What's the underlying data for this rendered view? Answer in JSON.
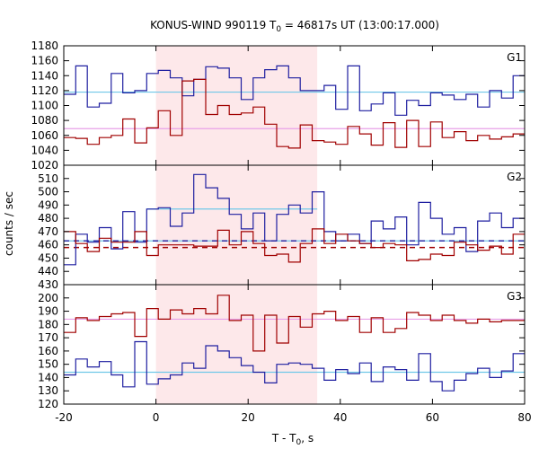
{
  "chart_data": {
    "type": "line",
    "title": "KONUS-WIND 990119 T",
    "title_sub": "0",
    "title_rest": " = 46817s UT (13:00:17.000)",
    "xlabel": "T - T",
    "xlabel_sub": "0",
    "xlabel_rest": ", s",
    "ylabel": "counts / sec",
    "xlim": [
      -20,
      80
    ],
    "x_ticks": [
      -20,
      0,
      20,
      40,
      60,
      80
    ],
    "highlight_interval": [
      0,
      35
    ],
    "colors": {
      "blue": "#1f1fa0",
      "red": "#a00000",
      "cyan": "#70c8e8",
      "pink": "#e8a0e8",
      "shade": "#fde8ea"
    },
    "bin_edges": [
      -20,
      -17.4,
      -14.9,
      -12.3,
      -9.7,
      -7.2,
      -4.6,
      -2.0,
      0.5,
      3.1,
      5.7,
      8.2,
      10.8,
      13.4,
      15.9,
      18.5,
      21.1,
      23.6,
      26.2,
      28.8,
      31.3,
      33.9,
      36.5,
      39.0,
      41.6,
      44.2,
      46.7,
      49.3,
      51.9,
      54.4,
      57.0,
      59.6,
      62.1,
      64.7,
      67.3,
      69.8,
      72.4,
      75.0,
      77.5,
      80
    ],
    "panels": [
      {
        "label": "G1",
        "ylim": [
          1020,
          1180
        ],
        "yticks": [
          1020,
          1040,
          1060,
          1080,
          1100,
          1120,
          1140,
          1160,
          1180
        ],
        "series": [
          {
            "color": "blue",
            "values": [
              1115,
              1153,
              1098,
              1103,
              1143,
              1117,
              1120,
              1143,
              1147,
              1137,
              1113,
              1135,
              1152,
              1150,
              1137,
              1108,
              1137,
              1148,
              1153,
              1137,
              1120,
              1120,
              1127,
              1095,
              1153,
              1093,
              1102,
              1117,
              1087,
              1107,
              1100,
              1117,
              1114,
              1108,
              1115,
              1098,
              1120,
              1110,
              1140
            ]
          },
          {
            "color": "red",
            "values": [
              1057,
              1056,
              1048,
              1057,
              1060,
              1082,
              1050,
              1070,
              1093,
              1060,
              1133,
              1135,
              1088,
              1100,
              1088,
              1090,
              1098,
              1075,
              1045,
              1043,
              1074,
              1053,
              1051,
              1048,
              1072,
              1062,
              1047,
              1077,
              1044,
              1080,
              1045,
              1078,
              1057,
              1065,
              1053,
              1060,
              1055,
              1058,
              1062
            ]
          }
        ],
        "reference_lines": [
          {
            "color": "cyan",
            "y": 1118,
            "x": [
              -20,
              80
            ],
            "dashed": false
          },
          {
            "color": "pink",
            "y": 1069,
            "x": [
              -20,
              80
            ],
            "dashed": false
          }
        ]
      },
      {
        "label": "G2",
        "ylim": [
          430,
          520
        ],
        "yticks": [
          430,
          440,
          450,
          460,
          470,
          480,
          490,
          500,
          510
        ],
        "series": [
          {
            "color": "blue",
            "values": [
              445,
              468,
              462,
              473,
              457,
              485,
              462,
              487,
              488,
              474,
              484,
              513,
              503,
              495,
              483,
              472,
              484,
              463,
              483,
              490,
              484,
              500,
              470,
              463,
              468,
              461,
              478,
              472,
              481,
              460,
              492,
              480,
              468,
              473,
              455,
              478,
              484,
              473,
              480
            ]
          },
          {
            "color": "red",
            "values": [
              470,
              461,
              455,
              465,
              462,
              462,
              470,
              452,
              460,
              460,
              460,
              459,
              459,
              471,
              460,
              470,
              461,
              452,
              453,
              447,
              461,
              472,
              461,
              468,
              463,
              461,
              458,
              461,
              460,
              448,
              449,
              453,
              452,
              462,
              460,
              456,
              459,
              453,
              468
            ]
          }
        ],
        "reference_lines": [
          {
            "color": "cyan",
            "y": 487,
            "x": [
              -2.0,
              35.0
            ],
            "dashed": false
          },
          {
            "color": "cyan",
            "y": 463,
            "x": [
              -20,
              80
            ],
            "dashed": false
          },
          {
            "color": "blue",
            "y": 463,
            "x": [
              -20,
              80
            ],
            "dashed": true
          },
          {
            "color": "red",
            "y": 458,
            "x": [
              -20,
              80
            ],
            "dashed": true
          }
        ]
      },
      {
        "label": "G3",
        "ylim": [
          120,
          210
        ],
        "yticks": [
          120,
          130,
          140,
          150,
          160,
          170,
          180,
          190,
          200
        ],
        "series": [
          {
            "color": "blue",
            "values": [
              142,
              154,
              148,
              152,
              142,
              133,
              167,
              135,
              139,
              142,
              151,
              147,
              164,
              160,
              155,
              149,
              144,
              136,
              150,
              151,
              150,
              147,
              138,
              146,
              143,
              151,
              137,
              148,
              146,
              138,
              158,
              137,
              130,
              138,
              143,
              147,
              140,
              145,
              158
            ]
          },
          {
            "color": "red",
            "values": [
              174,
              185,
              183,
              186,
              188,
              189,
              171,
              192,
              184,
              191,
              188,
              192,
              188,
              202,
              183,
              187,
              160,
              187,
              166,
              186,
              178,
              188,
              190,
              183,
              186,
              174,
              185,
              174,
              177,
              189,
              187,
              183,
              187,
              183,
              181,
              184,
              182,
              183,
              183
            ]
          }
        ],
        "reference_lines": [
          {
            "color": "pink",
            "y": 184,
            "x": [
              -20,
              80
            ],
            "dashed": false
          },
          {
            "color": "cyan",
            "y": 144,
            "x": [
              -20,
              80
            ],
            "dashed": false
          }
        ]
      }
    ]
  }
}
